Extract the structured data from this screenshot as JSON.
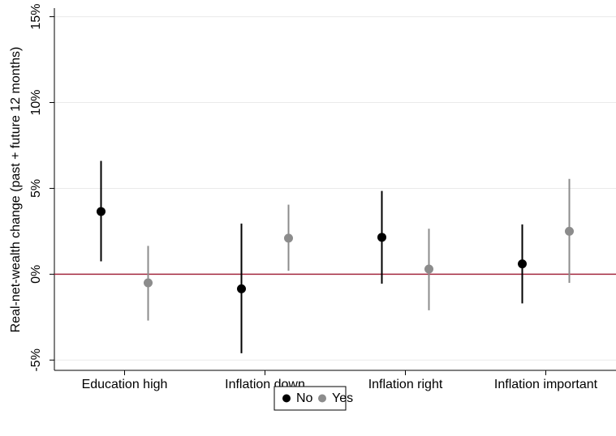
{
  "chart_data": {
    "type": "dot-errorbar",
    "ylabel": "Real-net-wealth change (past + future 12 months)",
    "categories": [
      "Education high",
      "Inflation down",
      "Inflation right",
      "Inflation important"
    ],
    "series": [
      {
        "name": "No",
        "color": "#000000",
        "values": [
          3.65,
          -0.85,
          2.15,
          0.6
        ],
        "lower": [
          0.75,
          -4.6,
          -0.55,
          -1.7
        ],
        "upper": [
          6.6,
          2.95,
          4.85,
          2.9
        ]
      },
      {
        "name": "Yes",
        "color": "#8c8c8c",
        "values": [
          -0.5,
          2.1,
          0.3,
          2.5
        ],
        "lower": [
          -2.7,
          0.2,
          -2.1,
          -0.5
        ],
        "upper": [
          1.65,
          4.05,
          2.65,
          5.55
        ]
      }
    ],
    "ylim": [
      -5.6,
      15.5
    ],
    "yticks": [
      {
        "value": -5,
        "label": "-5%"
      },
      {
        "value": 0,
        "label": "0%"
      },
      {
        "value": 5,
        "label": "5%"
      },
      {
        "value": 10,
        "label": "10%"
      },
      {
        "value": 15,
        "label": "15%"
      }
    ],
    "reference_line": {
      "value": 0,
      "color": "#a3283f"
    },
    "grid": true,
    "legend_position": "bottom"
  }
}
